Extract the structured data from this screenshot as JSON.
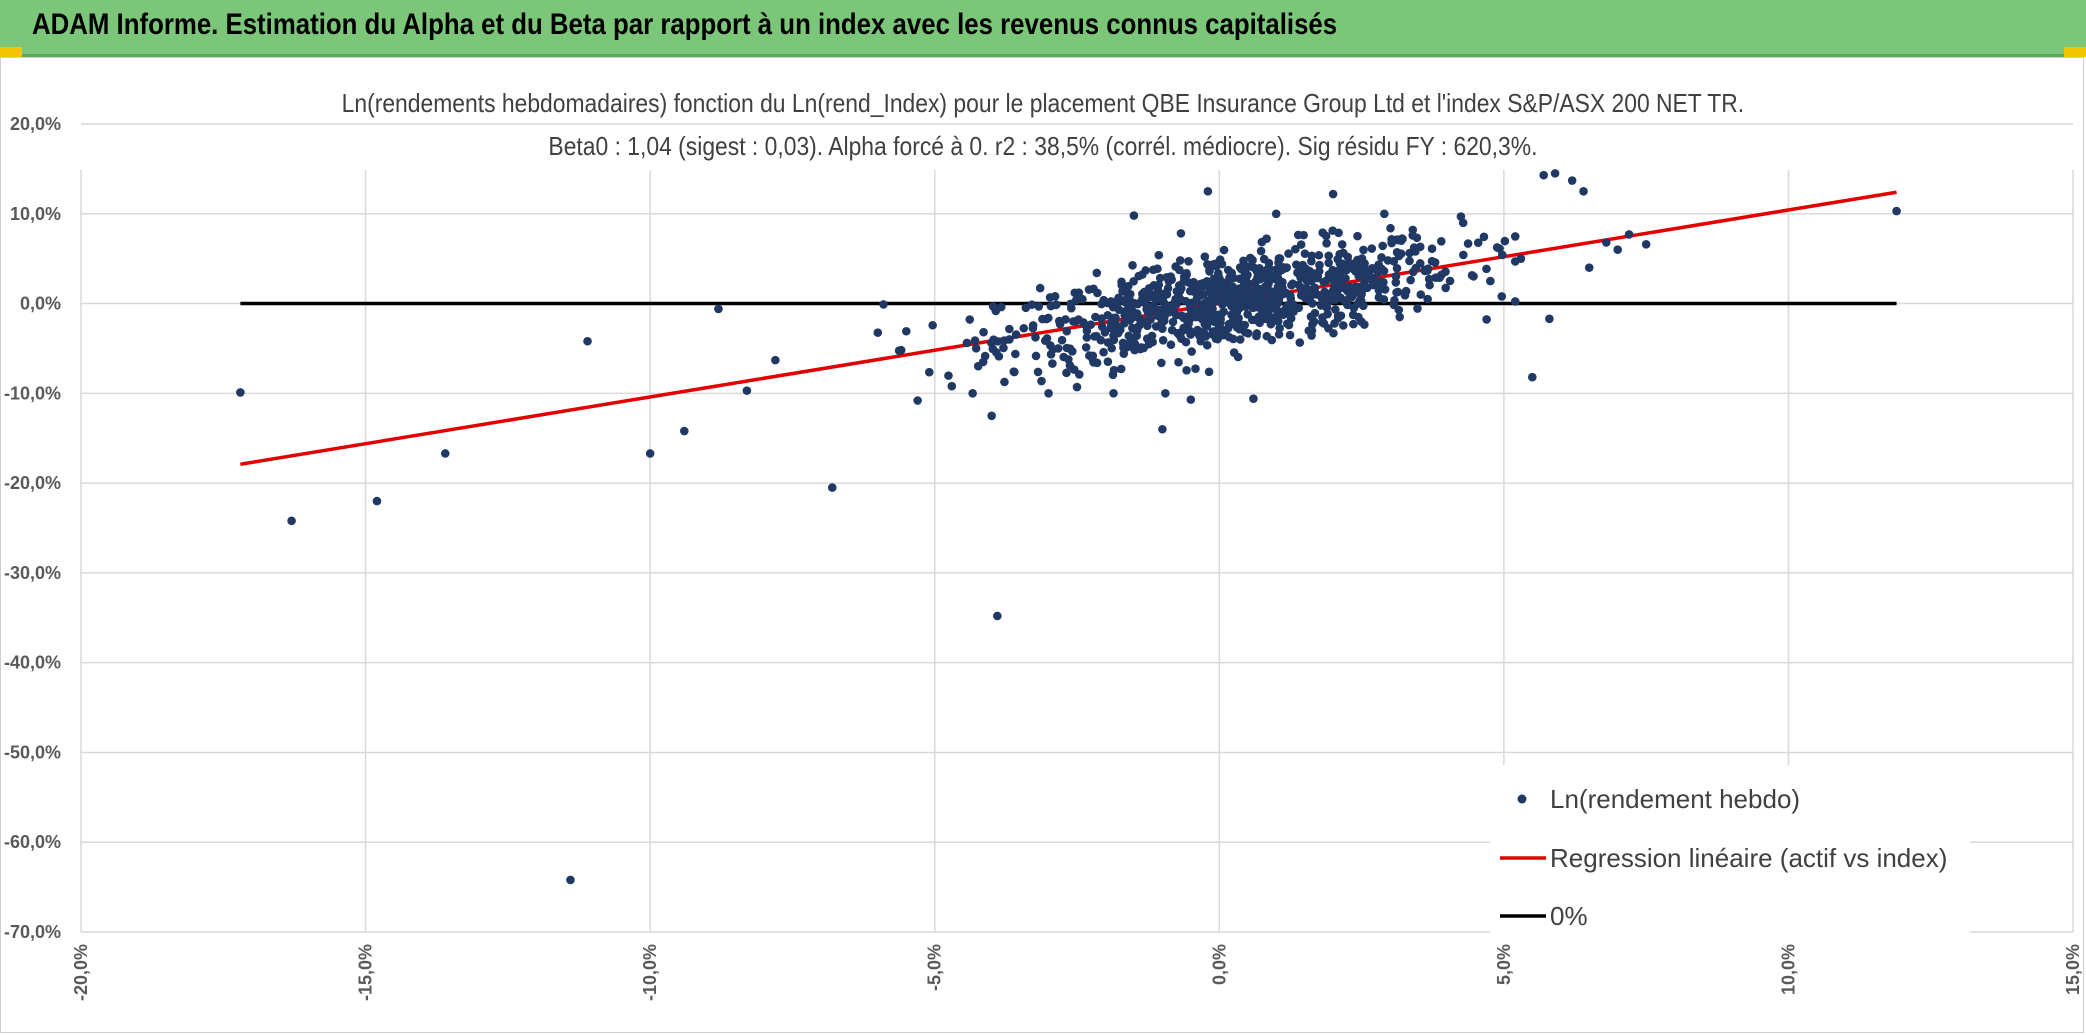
{
  "header": {
    "title": "ADAM Informe. Estimation du Alpha et du Beta par rapport à un index avec les revenus connus capitalisés"
  },
  "chart_data": {
    "type": "scatter",
    "title": "Ln(rendements hebdomadaires) fonction du Ln(rend_Index) pour le placement QBE Insurance Group Ltd et l'index S&P/ASX 200 NET TR.",
    "subtitle": "Beta0 : 1,04 (sigest : 0,03). Alpha forcé à 0. r2 : 38,5% (corrél. médiocre). Sig résidu FY : 620,3%.",
    "xlim": [
      -0.2,
      0.15
    ],
    "ylim": [
      -0.7,
      0.2
    ],
    "x_ticks": [
      -0.2,
      -0.15,
      -0.1,
      -0.05,
      0.0,
      0.05,
      0.1,
      0.15
    ],
    "y_ticks": [
      0.2,
      0.1,
      0.0,
      -0.1,
      -0.2,
      -0.3,
      -0.4,
      -0.5,
      -0.6,
      -0.7
    ],
    "x_tick_labels": [
      "-20,0%",
      "-15,0%",
      "-10,0%",
      "-5,0%",
      "0,0%",
      "5,0%",
      "10,0%",
      "15,0%"
    ],
    "y_tick_labels": [
      "20,0%",
      "10,0%",
      "0,0%",
      "-10,0%",
      "-20,0%",
      "-30,0%",
      "-40,0%",
      "-50,0%",
      "-60,0%",
      "-70,0%"
    ],
    "grid": true,
    "legend_position": "bottom-right",
    "series": [
      {
        "name": "Ln(rendement hebdo)",
        "kind": "scatter",
        "color": "#203864",
        "outliers": [
          [
            -0.172,
            -0.099
          ],
          [
            -0.163,
            -0.242
          ],
          [
            -0.148,
            -0.22
          ],
          [
            -0.136,
            -0.167
          ],
          [
            -0.114,
            -0.642
          ],
          [
            -0.111,
            -0.042
          ],
          [
            -0.1,
            -0.167
          ],
          [
            -0.094,
            -0.142
          ],
          [
            -0.088,
            -0.006
          ],
          [
            -0.083,
            -0.097
          ],
          [
            -0.078,
            -0.063
          ],
          [
            -0.068,
            -0.205
          ],
          [
            -0.039,
            -0.348
          ],
          [
            -0.04,
            -0.125
          ],
          [
            -0.03,
            -0.1
          ],
          [
            -0.01,
            -0.14
          ],
          [
            -0.015,
            0.098
          ],
          [
            -0.002,
            0.125
          ],
          [
            0.006,
            -0.106
          ],
          [
            0.01,
            0.1
          ],
          [
            0.02,
            0.122
          ],
          [
            0.029,
            0.1
          ],
          [
            0.055,
            -0.082
          ],
          [
            0.058,
            -0.017
          ],
          [
            0.057,
            0.143
          ],
          [
            0.059,
            0.145
          ],
          [
            0.062,
            0.137
          ],
          [
            0.064,
            0.125
          ],
          [
            0.065,
            0.04
          ],
          [
            0.068,
            0.068
          ],
          [
            0.07,
            0.06
          ],
          [
            0.072,
            0.077
          ],
          [
            0.075,
            0.066
          ],
          [
            0.119,
            0.103
          ],
          [
            0.053,
            0.05
          ],
          [
            -0.059,
            -0.001
          ],
          [
            -0.047,
            -0.092
          ],
          [
            -0.053,
            -0.108
          ],
          [
            -0.025,
            -0.093
          ],
          [
            -0.005,
            -0.107
          ]
        ],
        "cloud": {
          "count": 900,
          "x_mean": 0.002,
          "x_sd": 0.02,
          "beta": 1.04,
          "resid_sd": 0.026
        }
      },
      {
        "name": "Regression linéaire (actif vs index)",
        "kind": "line",
        "color": "#e30000",
        "x": [
          -0.172,
          0.119
        ],
        "y": [
          -0.179,
          0.124
        ]
      },
      {
        "name": "0%",
        "kind": "line",
        "color": "#000000",
        "x": [
          -0.172,
          0.119
        ],
        "y": [
          0.0,
          0.0
        ]
      }
    ]
  }
}
